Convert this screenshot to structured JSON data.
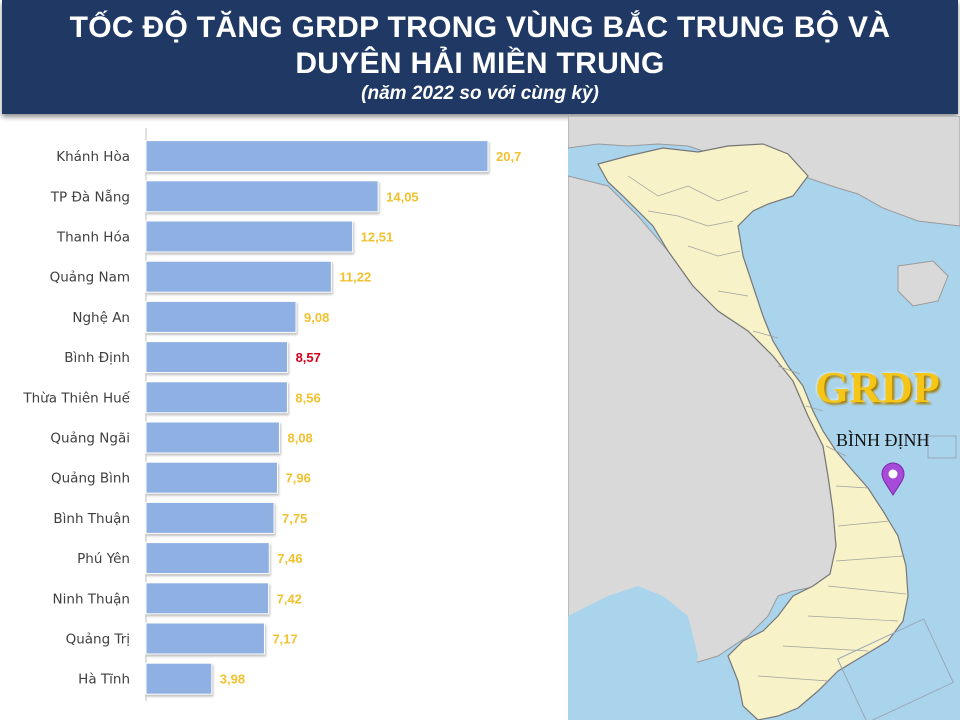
{
  "header": {
    "title_line1": "TỐC ĐỘ TĂNG GRDP TRONG VÙNG BẮC TRUNG BỘ VÀ",
    "title_line2": "DUYÊN HẢI MIỀN TRUNG",
    "subtitle": "(năm 2022 so với cùng kỳ)"
  },
  "map": {
    "grdp_label": "GRDP",
    "province_label": "BÌNH ĐỊNH",
    "pin_icon": "map-pin-icon",
    "pin_color": "#a64ad8"
  },
  "chart_data": {
    "type": "bar",
    "orientation": "horizontal",
    "categories": [
      "Khánh Hòa",
      "TP Đà Nẵng",
      "Thanh Hóa",
      "Quảng Nam",
      "Nghệ An",
      "Bình Định",
      "Thừa Thiên Huế",
      "Quảng Ngãi",
      "Quảng Bình",
      "Bình Thuận",
      "Phú Yên",
      "Ninh Thuận",
      "Quảng Trị",
      "Hà Tĩnh"
    ],
    "values": [
      20.7,
      14.05,
      12.51,
      11.22,
      9.08,
      8.57,
      8.56,
      8.08,
      7.96,
      7.75,
      7.46,
      7.42,
      7.17,
      3.98
    ],
    "data_labels": [
      "20,7",
      "14,05",
      "12,51",
      "11,22",
      "9,08",
      "8,57",
      "8,56",
      "8,08",
      "7,96",
      "7,75",
      "7,46",
      "7,42",
      "7,17",
      "3,98"
    ],
    "highlight_category": "Bình Định",
    "bar_color": "#8eb0e2",
    "label_color": "#f2c12e",
    "highlight_label_color": "#d0021b",
    "xlim": [
      0,
      22
    ],
    "grid": false
  }
}
